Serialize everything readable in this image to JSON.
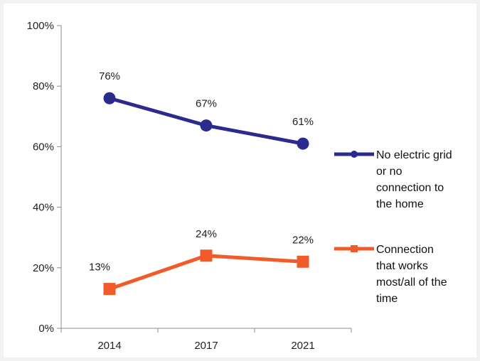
{
  "chart_data": {
    "type": "line",
    "title": "",
    "xlabel": "",
    "ylabel": "",
    "categories": [
      "2014",
      "2017",
      "2021"
    ],
    "ylim": [
      0,
      100
    ],
    "yticks": [
      0,
      20,
      40,
      60,
      80,
      100
    ],
    "ytick_labels": [
      "0%",
      "20%",
      "40%",
      "60%",
      "80%",
      "100%"
    ],
    "grid": false,
    "legend_position": "right",
    "series": [
      {
        "name": "No electric grid or no connection to the home",
        "name_lines": [
          "No electric grid",
          "or no",
          "connection to",
          "the home"
        ],
        "values": [
          76,
          67,
          61
        ],
        "labels": [
          "76%",
          "67%",
          "61%"
        ],
        "color": "#2a2a8f",
        "marker": "circle"
      },
      {
        "name": "Connection that works most/all of the time",
        "name_lines": [
          "Connection",
          "that works",
          "most/all of the",
          "time"
        ],
        "values": [
          13,
          24,
          22
        ],
        "labels": [
          "13%",
          "24%",
          "22%"
        ],
        "color": "#f15a29",
        "marker": "square"
      }
    ]
  }
}
